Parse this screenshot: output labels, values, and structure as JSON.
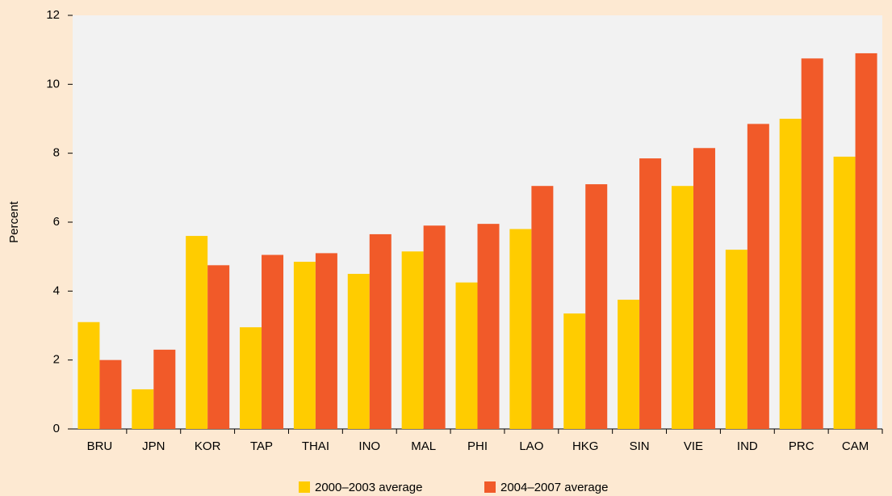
{
  "chart_data": {
    "type": "bar",
    "y_label": "Percent",
    "categories": [
      "BRU",
      "JPN",
      "KOR",
      "TAP",
      "THAI",
      "INO",
      "MAL",
      "PHI",
      "LAO",
      "HKG",
      "SIN",
      "VIE",
      "IND",
      "PRC",
      "CAM"
    ],
    "series": [
      {
        "name": "2000–2003 average",
        "color": "#ffcc00",
        "values": [
          3.1,
          1.15,
          5.6,
          2.95,
          4.85,
          4.5,
          5.15,
          4.25,
          5.8,
          3.35,
          3.75,
          7.05,
          5.2,
          9.0,
          7.9
        ]
      },
      {
        "name": "2004–2007 average",
        "color": "#f15a29",
        "values": [
          2.0,
          2.3,
          4.75,
          5.05,
          5.1,
          5.65,
          5.9,
          5.95,
          7.05,
          7.1,
          7.85,
          8.15,
          8.85,
          10.75,
          10.9
        ]
      }
    ],
    "ylim": [
      0,
      12
    ],
    "yticks": [
      0,
      2,
      4,
      6,
      8,
      10,
      12
    ],
    "legend": "bottom"
  }
}
